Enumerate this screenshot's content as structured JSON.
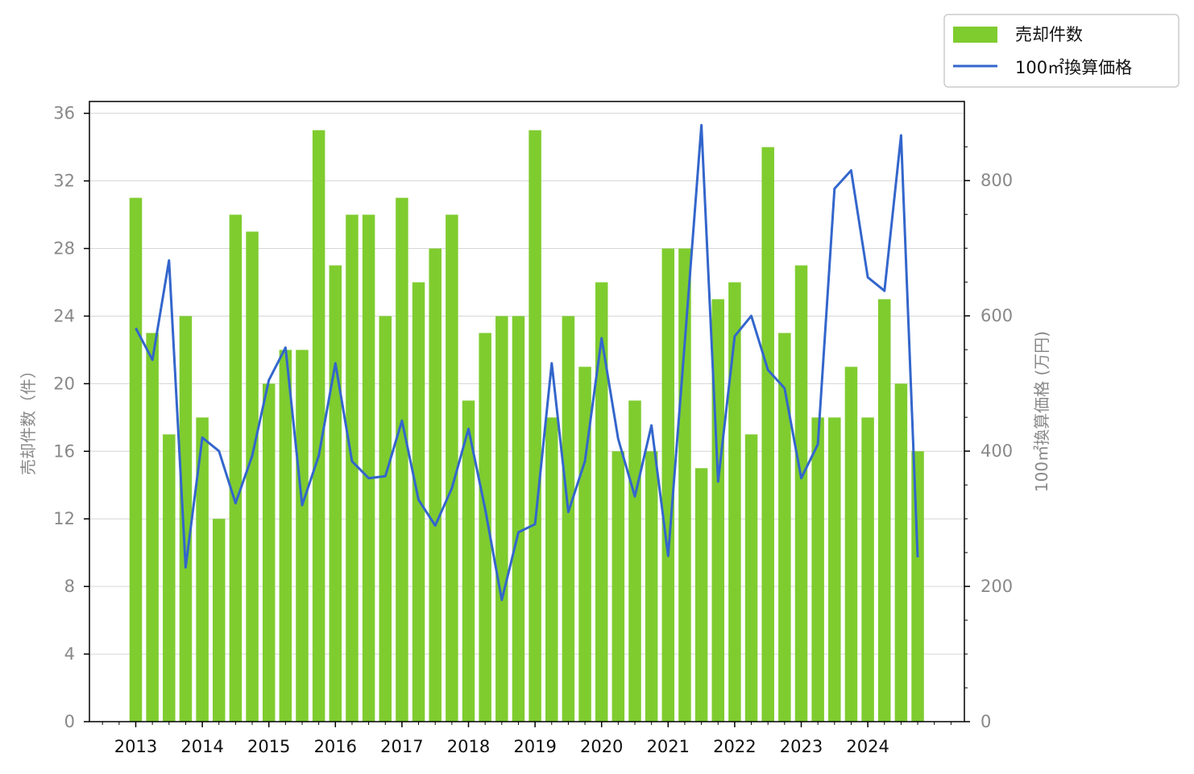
{
  "chart_data": {
    "type": "bar",
    "title": "",
    "x_tick_labels": [
      "2013",
      "2014",
      "2015",
      "2016",
      "2017",
      "2018",
      "2019",
      "2020",
      "2021",
      "2022",
      "2023",
      "2024"
    ],
    "ylabel_left": "売却件数（件）",
    "ylabel_right": "100㎡換算価格 (万円)",
    "left_axis": {
      "ticks": [
        0,
        4,
        8,
        12,
        16,
        20,
        24,
        28,
        32,
        36
      ],
      "ylim": [
        0,
        36.7
      ]
    },
    "right_axis": {
      "ticks": [
        0,
        200,
        400,
        600,
        800
      ],
      "ylim": [
        0,
        917
      ]
    },
    "grid": "horizontal, left axis",
    "legend_placement": "top-right, outside plot",
    "series": [
      {
        "name": "売却件数",
        "type": "bar",
        "color": "#7fcc2f",
        "axis": "left",
        "values": [
          31,
          23,
          17,
          24,
          18,
          12,
          30,
          29,
          20,
          22,
          22,
          35,
          27,
          30,
          30,
          24,
          31,
          26,
          28,
          30,
          19,
          23,
          24,
          24,
          35,
          18,
          24,
          21,
          26,
          16,
          19,
          16,
          28,
          28,
          15,
          25,
          26,
          17,
          34,
          23,
          27,
          18,
          18,
          21,
          18,
          25,
          20,
          16
        ]
      },
      {
        "name": "100㎡換算価格",
        "type": "line",
        "color": "#3366cc",
        "axis": "right",
        "values": [
          582,
          535,
          682,
          228,
          420,
          400,
          323,
          393,
          505,
          553,
          320,
          393,
          530,
          385,
          360,
          363,
          445,
          328,
          290,
          345,
          433,
          315,
          180,
          280,
          292,
          530,
          310,
          385,
          567,
          418,
          333,
          438,
          245,
          560,
          882,
          355,
          570,
          600,
          520,
          493,
          360,
          410,
          788,
          815,
          657,
          637,
          867,
          243
        ]
      }
    ]
  }
}
